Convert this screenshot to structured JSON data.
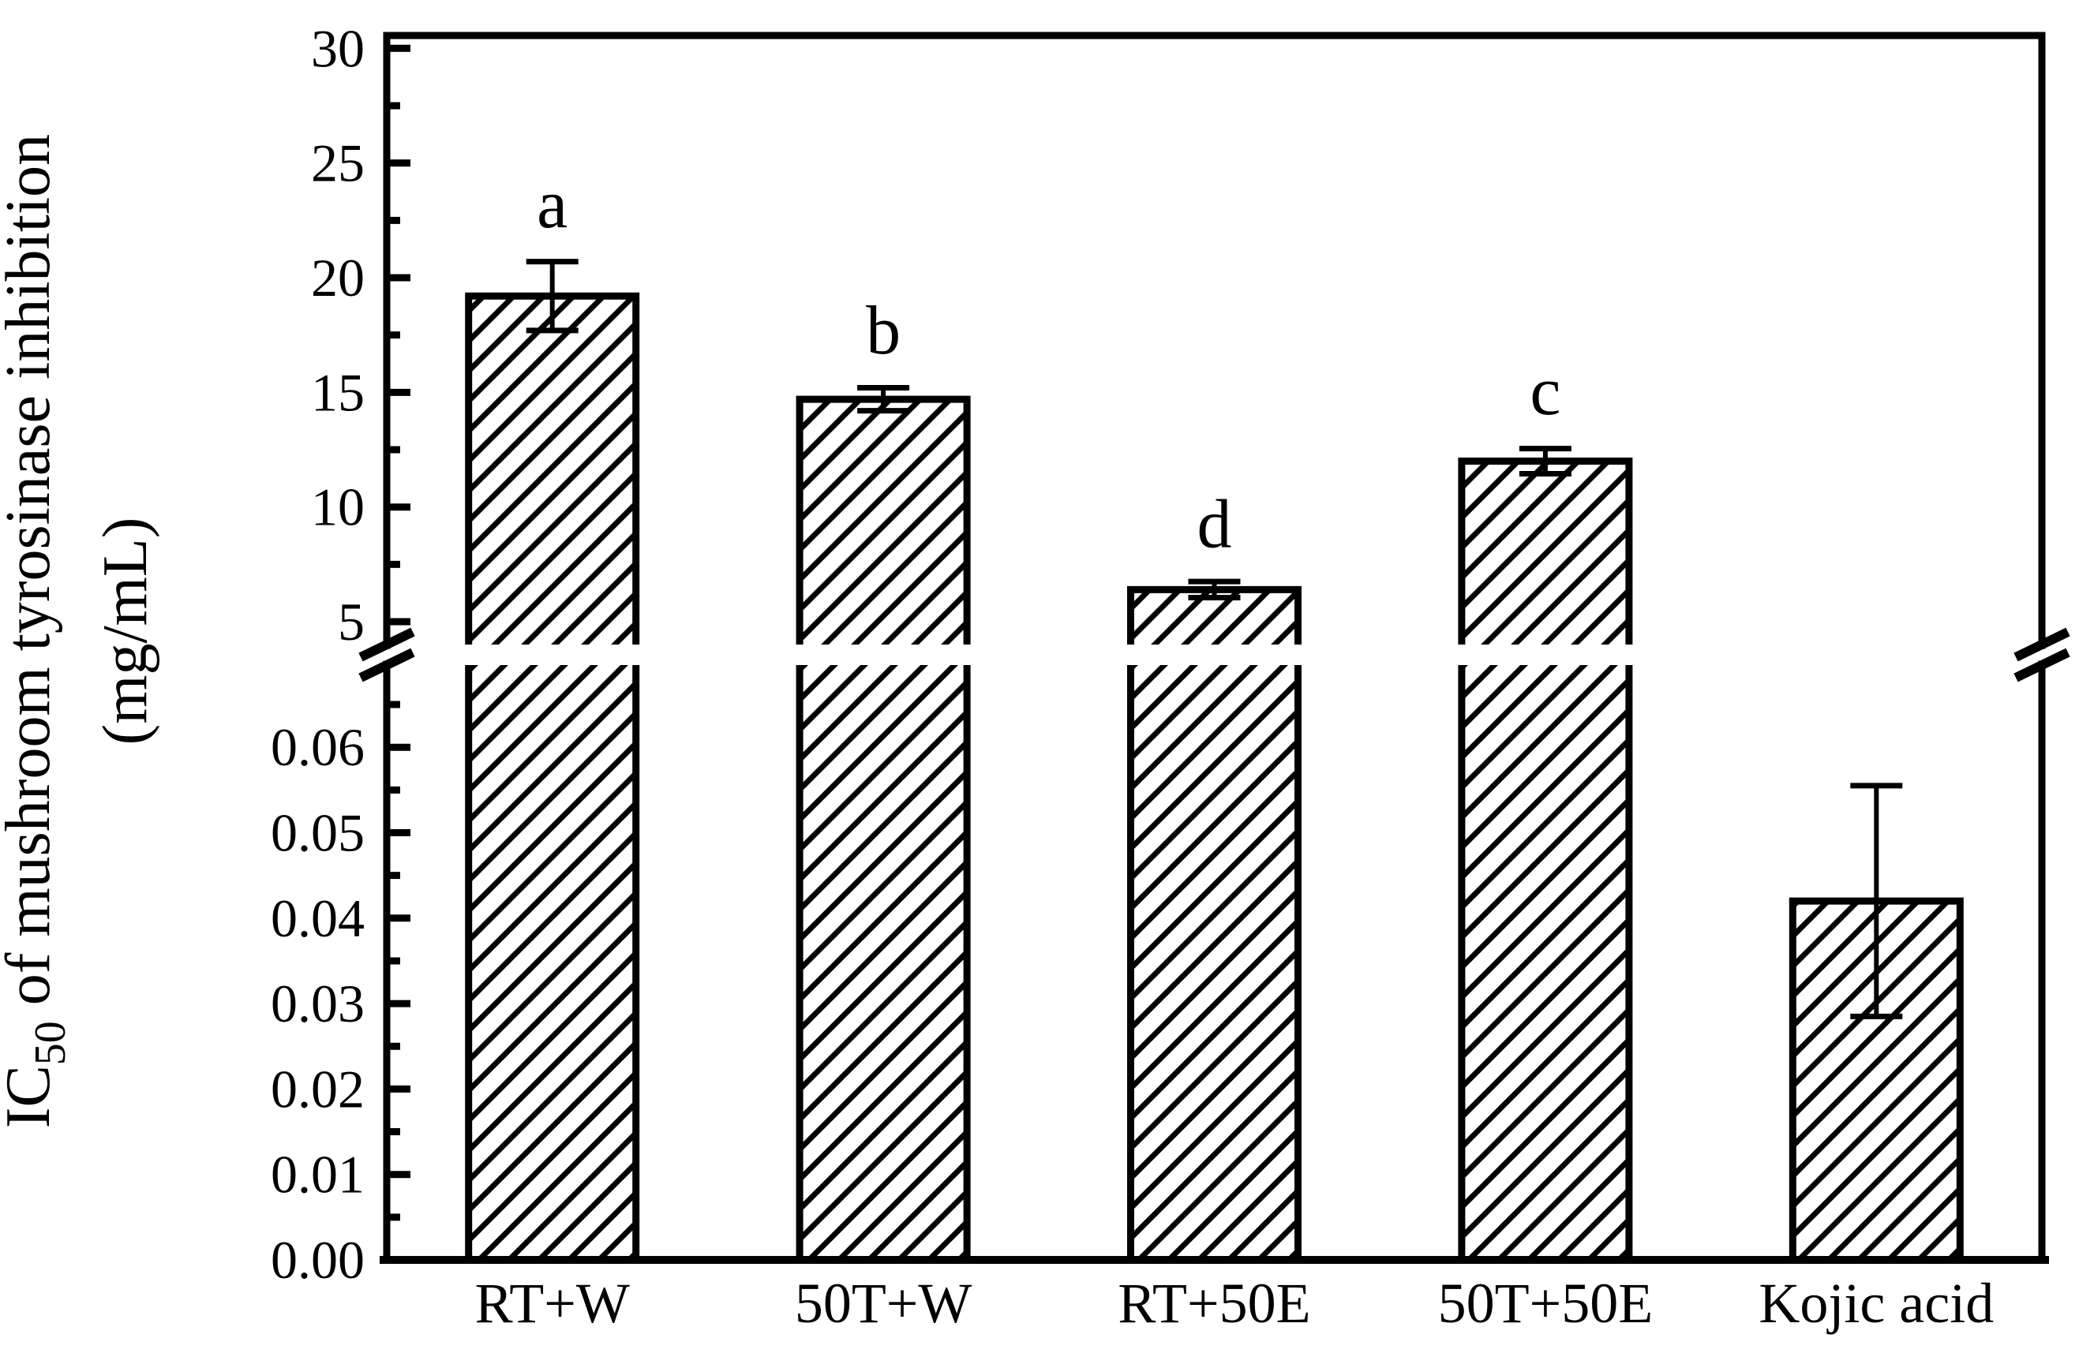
{
  "figure": {
    "background": "#ffffff",
    "ink_color": "#000000"
  },
  "chart_data": {
    "type": "bar",
    "title": "",
    "categories": [
      "RT+W",
      "50T+W",
      "RT+50E",
      "50T+50E",
      "Kojic acid"
    ],
    "values": [
      19.2,
      14.7,
      6.4,
      12.0,
      0.042
    ],
    "error_bars": [
      1.5,
      0.5,
      0.35,
      0.55,
      0.0135
    ],
    "sig_letters": [
      "a",
      "b",
      "d",
      "c",
      ""
    ],
    "bar_style": "black-diagonal-hatch-on-white",
    "grid": false,
    "legend": null,
    "xlabel": "",
    "ylabel": {
      "prefix": "IC",
      "subscript": "50",
      "suffix": " of mushroom tyrosinase inhibition",
      "line2": "(mg/mL)"
    },
    "axis_break": {
      "note": "y-axis has a break between 4 and 0.07 (upper segment 5-30, lower segment 0.00-0.06)",
      "upper": {
        "range": [
          4.0,
          30.5
        ],
        "major_ticks": [
          5,
          10,
          15,
          20,
          25,
          30
        ],
        "tick_labels": [
          "5",
          "10",
          "15",
          "20",
          "25",
          "30"
        ],
        "minor_step": 2.5
      },
      "lower": {
        "range": [
          0,
          0.0697
        ],
        "major_ticks": [
          0,
          0.01,
          0.02,
          0.03,
          0.04,
          0.05,
          0.06
        ],
        "tick_labels": [
          "0.00",
          "0.01",
          "0.02",
          "0.03",
          "0.04",
          "0.05",
          "0.06"
        ],
        "minor_step": 0.005
      }
    }
  }
}
